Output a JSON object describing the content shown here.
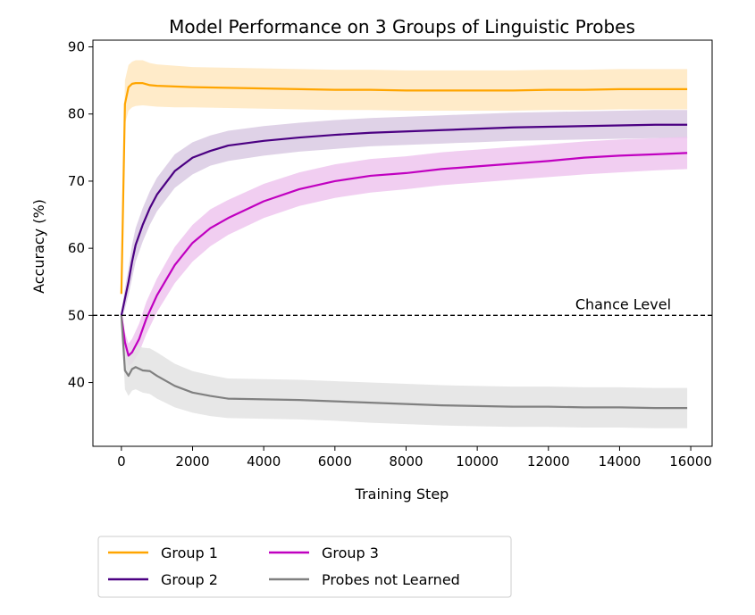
{
  "chart_data": {
    "type": "line",
    "title": "Model Performance on 3 Groups of Linguistic Probes",
    "xlabel": "Training Step",
    "ylabel": "Accuracy (%)",
    "xlim": [
      -800,
      16600
    ],
    "ylim": [
      30.5,
      91
    ],
    "xticks": [
      0,
      2000,
      4000,
      6000,
      8000,
      10000,
      12000,
      14000,
      16000
    ],
    "yticks": [
      40,
      50,
      60,
      70,
      80,
      90
    ],
    "grid": false,
    "legend_placement": "below-left",
    "reference_line": {
      "y": 50,
      "label": "Chance Level",
      "style": "dashed"
    },
    "series": [
      {
        "name": "Group 1",
        "color": "#FFA500",
        "band_color": "#FFE7C0",
        "x": [
          0,
          100,
          200,
          300,
          400,
          600,
          800,
          1000,
          1500,
          2000,
          3000,
          4000,
          5000,
          6000,
          7000,
          8000,
          9000,
          10000,
          11000,
          12000,
          13000,
          14000,
          15000,
          15900
        ],
        "y": [
          53.2,
          81.5,
          84.0,
          84.5,
          84.6,
          84.6,
          84.3,
          84.2,
          84.1,
          84.0,
          83.9,
          83.8,
          83.7,
          83.6,
          83.6,
          83.5,
          83.5,
          83.5,
          83.5,
          83.6,
          83.6,
          83.7,
          83.7,
          83.7
        ],
        "lower": [
          53.0,
          78.5,
          80.5,
          81.0,
          81.2,
          81.3,
          81.2,
          81.1,
          81.0,
          81.0,
          80.9,
          80.8,
          80.7,
          80.6,
          80.6,
          80.5,
          80.5,
          80.5,
          80.5,
          80.6,
          80.6,
          80.7,
          80.7,
          80.7
        ],
        "upper": [
          53.4,
          85.0,
          87.3,
          87.8,
          88.0,
          88.0,
          87.6,
          87.4,
          87.2,
          87.0,
          86.9,
          86.8,
          86.7,
          86.6,
          86.6,
          86.5,
          86.5,
          86.5,
          86.5,
          86.6,
          86.6,
          86.7,
          86.7,
          86.7
        ]
      },
      {
        "name": "Group 2",
        "color": "#4B0082",
        "band_color": "#D9CAE3",
        "x": [
          0,
          100,
          200,
          300,
          400,
          600,
          800,
          1000,
          1500,
          2000,
          2500,
          3000,
          4000,
          5000,
          6000,
          7000,
          8000,
          9000,
          10000,
          11000,
          12000,
          13000,
          14000,
          15000,
          15900
        ],
        "y": [
          50.0,
          52.5,
          55.0,
          58.0,
          60.5,
          63.5,
          66.0,
          68.0,
          71.5,
          73.5,
          74.5,
          75.3,
          76.0,
          76.5,
          76.9,
          77.2,
          77.4,
          77.6,
          77.8,
          78.0,
          78.1,
          78.2,
          78.3,
          78.4,
          78.4
        ],
        "lower": [
          49.5,
          51.0,
          53.0,
          55.5,
          58.0,
          61.0,
          63.5,
          65.5,
          69.0,
          71.0,
          72.3,
          73.0,
          73.8,
          74.4,
          74.8,
          75.2,
          75.4,
          75.6,
          75.8,
          76.0,
          76.1,
          76.2,
          76.3,
          76.4,
          76.4
        ],
        "upper": [
          50.5,
          54.0,
          57.0,
          60.5,
          63.0,
          66.0,
          68.5,
          70.5,
          74.0,
          75.8,
          76.8,
          77.5,
          78.2,
          78.7,
          79.1,
          79.4,
          79.6,
          79.8,
          80.0,
          80.2,
          80.3,
          80.4,
          80.5,
          80.6,
          80.6
        ]
      },
      {
        "name": "Group 3",
        "color": "#C000C0",
        "band_color": "#EFC6EF",
        "x": [
          0,
          100,
          200,
          300,
          500,
          700,
          1000,
          1500,
          2000,
          2500,
          3000,
          4000,
          5000,
          6000,
          7000,
          8000,
          9000,
          10000,
          11000,
          12000,
          13000,
          14000,
          15000,
          15900
        ],
        "y": [
          50.0,
          46.0,
          44.0,
          44.5,
          46.5,
          49.5,
          53.0,
          57.5,
          60.8,
          63.0,
          64.5,
          67.0,
          68.8,
          70.0,
          70.8,
          71.2,
          71.8,
          72.2,
          72.6,
          73.0,
          73.5,
          73.8,
          74.0,
          74.2
        ],
        "lower": [
          49.5,
          44.5,
          42.5,
          42.8,
          44.5,
          47.2,
          50.5,
          54.8,
          58.0,
          60.3,
          62.0,
          64.5,
          66.3,
          67.5,
          68.3,
          68.8,
          69.4,
          69.8,
          70.2,
          70.6,
          71.0,
          71.3,
          71.6,
          71.8
        ],
        "upper": [
          50.5,
          47.5,
          45.8,
          46.5,
          48.8,
          52.0,
          55.5,
          60.2,
          63.5,
          65.8,
          67.2,
          69.6,
          71.3,
          72.5,
          73.3,
          73.7,
          74.3,
          74.7,
          75.1,
          75.5,
          75.9,
          76.2,
          76.4,
          76.6
        ]
      },
      {
        "name": "Probes not Learned",
        "color": "#808080",
        "band_color": "#E3E3E3",
        "x": [
          0,
          100,
          200,
          300,
          400,
          600,
          800,
          1000,
          1500,
          2000,
          2500,
          3000,
          4000,
          5000,
          6000,
          7000,
          8000,
          9000,
          10000,
          11000,
          12000,
          13000,
          14000,
          15000,
          15900
        ],
        "y": [
          50.0,
          41.8,
          41.0,
          42.0,
          42.3,
          41.8,
          41.7,
          41.0,
          39.5,
          38.5,
          38.0,
          37.6,
          37.5,
          37.4,
          37.2,
          37.0,
          36.8,
          36.6,
          36.5,
          36.4,
          36.4,
          36.3,
          36.3,
          36.2,
          36.2
        ],
        "lower": [
          49.5,
          39.0,
          38.0,
          38.8,
          39.0,
          38.5,
          38.3,
          37.6,
          36.3,
          35.5,
          35.0,
          34.7,
          34.6,
          34.5,
          34.3,
          34.0,
          33.8,
          33.6,
          33.5,
          33.4,
          33.4,
          33.3,
          33.3,
          33.2,
          33.2
        ],
        "upper": [
          50.5,
          44.8,
          44.2,
          45.2,
          45.6,
          45.2,
          45.1,
          44.5,
          42.8,
          41.7,
          41.1,
          40.6,
          40.5,
          40.4,
          40.2,
          40.0,
          39.8,
          39.6,
          39.5,
          39.4,
          39.4,
          39.3,
          39.3,
          39.2,
          39.2
        ]
      }
    ]
  }
}
